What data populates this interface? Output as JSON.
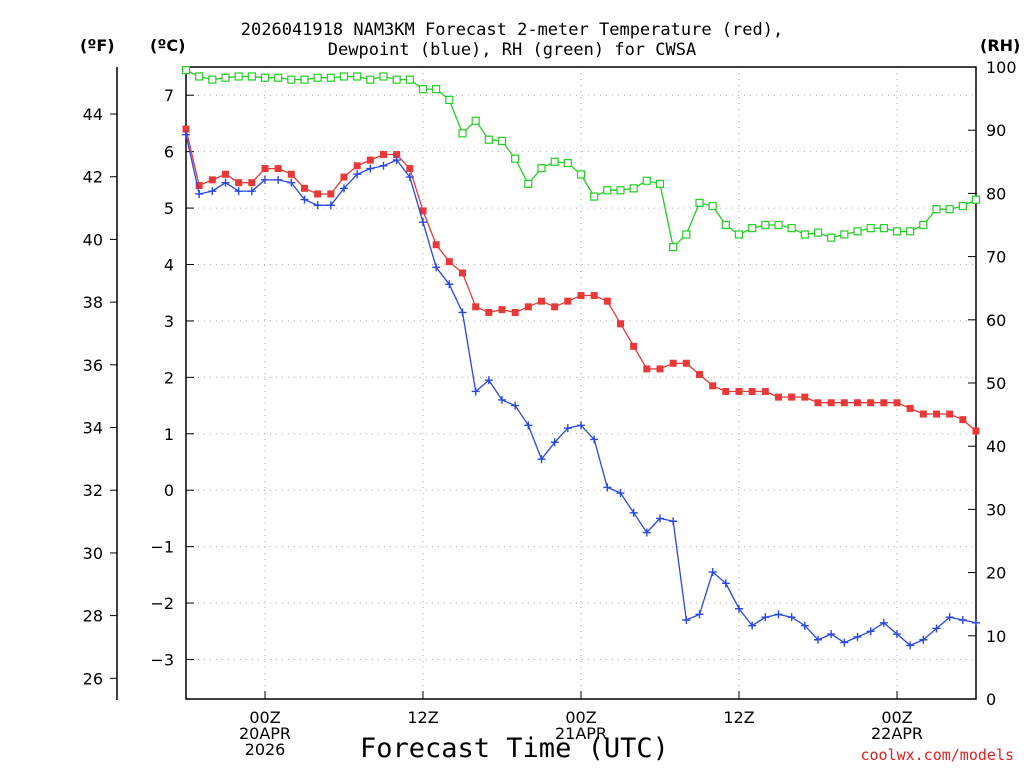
{
  "chart_data": {
    "type": "line",
    "title_line1": "2026041918 NAM3KM Forecast 2-meter Temperature (red),",
    "title_line2": "Dewpoint (blue), RH (green) for CWSA",
    "left_outer_unit": "(ºF)",
    "left_inner_unit": "(ºC)",
    "right_unit": "(RH)",
    "xlabel": "Forecast Time (UTC)",
    "credit": "coolwx.com/models",
    "y_celsius_range": [
      -3.7,
      7.5
    ],
    "y_rh_range": [
      0,
      100
    ],
    "x_hours_range": [
      -5,
      55
    ],
    "celsius_ticks": [
      "-3",
      "-2",
      "-1",
      "0",
      "1",
      "2",
      "3",
      "4",
      "5",
      "6",
      "7"
    ],
    "fahrenheit_ticks": [
      "26",
      "28",
      "30",
      "32",
      "34",
      "36",
      "38",
      "40",
      "42",
      "44"
    ],
    "rh_ticks": [
      "0",
      "10",
      "20",
      "30",
      "40",
      "50",
      "60",
      "70",
      "80",
      "90",
      "100"
    ],
    "x_ticks": [
      {
        "hour": 1,
        "lines": [
          "00Z",
          "20APR",
          "2026"
        ]
      },
      {
        "hour": 13,
        "lines": [
          "12Z"
        ]
      },
      {
        "hour": 25,
        "lines": [
          "00Z",
          "21APR"
        ]
      },
      {
        "hour": 37,
        "lines": [
          "12Z"
        ]
      },
      {
        "hour": 49,
        "lines": [
          "00Z",
          "22APR"
        ]
      }
    ],
    "x_hours": [
      -5,
      -4,
      -3,
      -2,
      -1,
      0,
      1,
      2,
      3,
      4,
      5,
      6,
      7,
      8,
      9,
      10,
      11,
      12,
      13,
      14,
      15,
      16,
      17,
      18,
      19,
      20,
      21,
      22,
      23,
      24,
      25,
      26,
      27,
      28,
      29,
      30,
      31,
      32,
      33,
      34,
      35,
      36,
      37,
      38,
      39,
      40,
      41,
      42,
      43,
      44,
      45,
      46,
      47,
      48,
      49,
      50,
      51,
      52,
      53,
      54,
      55
    ],
    "series": [
      {
        "name": "Temperature",
        "unit": "C",
        "color": "#e83838",
        "marker": "square-filled",
        "values": [
          6.4,
          5.4,
          5.5,
          5.6,
          5.45,
          5.45,
          5.7,
          5.7,
          5.6,
          5.35,
          5.25,
          5.25,
          5.55,
          5.75,
          5.85,
          5.95,
          5.95,
          5.7,
          4.95,
          4.35,
          4.05,
          3.85,
          3.25,
          3.15,
          3.2,
          3.15,
          3.25,
          3.35,
          3.25,
          3.35,
          3.45,
          3.45,
          3.35,
          2.95,
          2.55,
          2.15,
          2.15,
          2.25,
          2.25,
          2.05,
          1.85,
          1.75,
          1.75,
          1.75,
          1.75,
          1.65,
          1.65,
          1.65,
          1.55,
          1.55,
          1.55,
          1.55,
          1.55,
          1.55,
          1.55,
          1.45,
          1.35,
          1.35,
          1.35,
          1.25,
          1.05
        ]
      },
      {
        "name": "Dewpoint",
        "unit": "C",
        "color": "#2848e0",
        "marker": "plus",
        "values": [
          6.3,
          5.25,
          5.3,
          5.45,
          5.3,
          5.3,
          5.5,
          5.5,
          5.45,
          5.15,
          5.05,
          5.05,
          5.35,
          5.6,
          5.7,
          5.75,
          5.85,
          5.55,
          4.75,
          3.95,
          3.65,
          3.15,
          1.75,
          1.95,
          1.6,
          1.5,
          1.15,
          0.55,
          0.85,
          1.1,
          1.15,
          0.9,
          0.05,
          -0.05,
          -0.4,
          -0.75,
          -0.5,
          -0.55,
          -2.3,
          -2.2,
          -1.45,
          -1.65,
          -2.1,
          -2.4,
          -2.25,
          -2.2,
          -2.25,
          -2.4,
          -2.65,
          -2.55,
          -2.7,
          -2.6,
          -2.5,
          -2.35,
          -2.55,
          -2.75,
          -2.65,
          -2.45,
          -2.25,
          -2.3,
          -2.35
        ]
      },
      {
        "name": "RH",
        "unit": "%",
        "color": "#20d020",
        "marker": "square-open",
        "axis": "right",
        "values": [
          99.5,
          98.5,
          98,
          98.3,
          98.5,
          98.5,
          98.3,
          98.3,
          98,
          98,
          98.3,
          98.3,
          98.5,
          98.5,
          98,
          98.5,
          98,
          98,
          96.5,
          96.5,
          94.8,
          89.5,
          91.5,
          88.5,
          88.3,
          85.5,
          81.5,
          84,
          85,
          84.8,
          83,
          79.5,
          80.5,
          80.5,
          80.8,
          82,
          81.5,
          71.5,
          73.5,
          78.5,
          78,
          75,
          73.5,
          74.5,
          75,
          75,
          74.5,
          73.5,
          73.8,
          73,
          73.5,
          74,
          74.5,
          74.5,
          74,
          74,
          75,
          77.5,
          77.5,
          78,
          79
        ]
      }
    ]
  }
}
